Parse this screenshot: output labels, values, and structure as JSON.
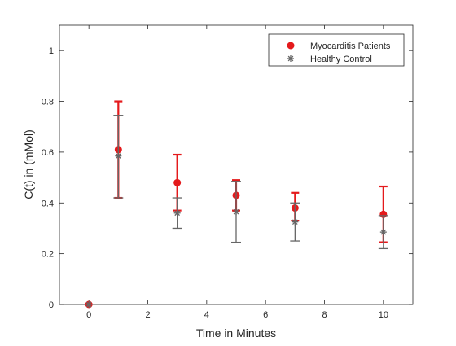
{
  "chart_data": {
    "type": "scatter",
    "title": "",
    "xlabel": "Time in Minutes",
    "ylabel": "C(t) in (mMol)",
    "xlim": [
      -1,
      11
    ],
    "ylim": [
      0,
      1.1
    ],
    "xticks": [
      0,
      2,
      4,
      6,
      8,
      10
    ],
    "yticks": [
      0,
      0.2,
      0.4,
      0.6,
      0.8,
      1
    ],
    "xtick_labels": [
      "0",
      "2",
      "4",
      "6",
      "8",
      "10"
    ],
    "ytick_labels": [
      "0",
      "0.2",
      "0.4",
      "0.6",
      "0.8",
      "1"
    ],
    "grid": false,
    "legend_position": "top-right",
    "series": [
      {
        "name": "Myocarditis Patients",
        "color": "#e41a1c",
        "marker": "filled-circle",
        "points": [
          {
            "x": 0,
            "y": 0.0,
            "lo": null,
            "hi": null
          },
          {
            "x": 1,
            "y": 0.61,
            "lo": 0.42,
            "hi": 0.8
          },
          {
            "x": 3,
            "y": 0.48,
            "lo": 0.37,
            "hi": 0.59
          },
          {
            "x": 5,
            "y": 0.43,
            "lo": 0.37,
            "hi": 0.49
          },
          {
            "x": 7,
            "y": 0.38,
            "lo": 0.33,
            "hi": 0.44
          },
          {
            "x": 10,
            "y": 0.355,
            "lo": 0.245,
            "hi": 0.465
          }
        ]
      },
      {
        "name": "Healthy Control",
        "color": "#666666",
        "marker": "asterisk",
        "points": [
          {
            "x": 0,
            "y": 0.0,
            "lo": null,
            "hi": null
          },
          {
            "x": 1,
            "y": 0.585,
            "lo": 0.42,
            "hi": 0.745
          },
          {
            "x": 3,
            "y": 0.36,
            "lo": 0.3,
            "hi": 0.42
          },
          {
            "x": 5,
            "y": 0.365,
            "lo": 0.245,
            "hi": 0.485
          },
          {
            "x": 7,
            "y": 0.325,
            "lo": 0.25,
            "hi": 0.4
          },
          {
            "x": 10,
            "y": 0.285,
            "lo": 0.22,
            "hi": 0.35
          }
        ]
      }
    ]
  }
}
